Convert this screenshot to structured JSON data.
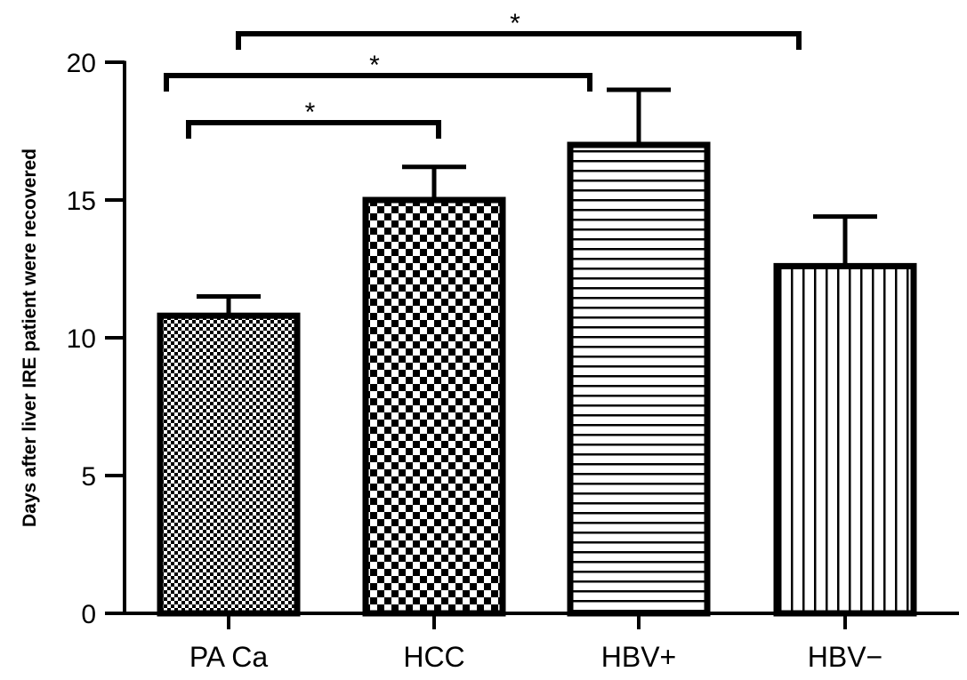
{
  "chart_data": {
    "type": "bar",
    "categories": [
      "PA Ca",
      "HCC",
      "HBV+",
      "HBV−"
    ],
    "values": [
      10.8,
      15.0,
      17.0,
      12.6
    ],
    "errors": [
      0.7,
      1.2,
      2.0,
      1.8
    ],
    "patterns": [
      "fine-checker",
      "checker",
      "horizontal-lines",
      "vertical-lines"
    ],
    "xlabel": "",
    "ylabel": "Days after liver IRE patient were recovered",
    "ylim": [
      0,
      20
    ],
    "yticks": [
      0,
      5,
      10,
      15,
      20
    ],
    "grid": false,
    "significance": [
      {
        "from": 0,
        "to": 1,
        "label": "*"
      },
      {
        "from": 0,
        "to": 2,
        "label": "*"
      },
      {
        "from": 0,
        "to": 3,
        "label": "*"
      }
    ]
  }
}
